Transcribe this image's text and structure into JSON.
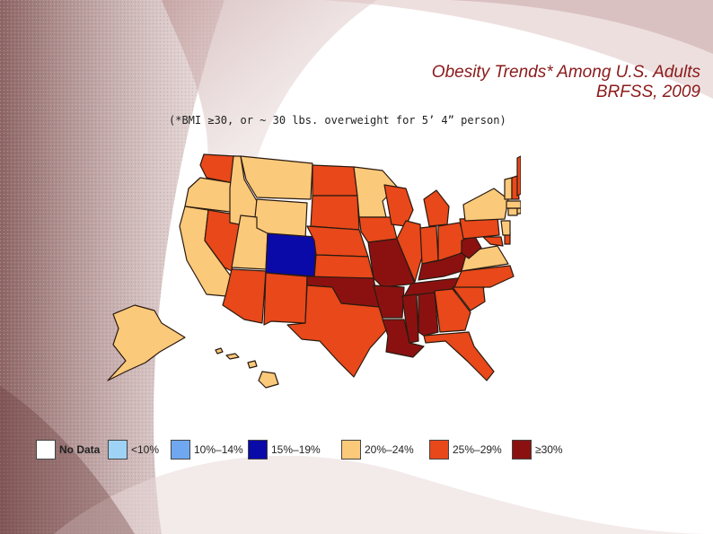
{
  "title": {
    "line1": "Obesity Trends* Among U.S. Adults",
    "line2": "BRFSS, 2009"
  },
  "subtitle": "(*BMI ≥30, or ~ 30 lbs. overweight for 5’ 4” person)",
  "colors": {
    "no_data": "#ffffff",
    "lt10": "#9fd3f5",
    "10_14": "#6fa8f0",
    "15_19": "#0a0aa8",
    "20_24": "#fbc97a",
    "25_29": "#e8481a",
    "gte30": "#8b1111",
    "state_border": "#2a1a10"
  },
  "legend": [
    {
      "key": "no_data",
      "label": "No Data",
      "color": "#ffffff"
    },
    {
      "key": "lt10",
      "label": "<10%",
      "color": "#9fd3f5"
    },
    {
      "key": "10_14",
      "label": "10%–14%",
      "color": "#6fa8f0"
    },
    {
      "key": "15_19",
      "label": "15%–19%",
      "color": "#0a0aa8"
    },
    {
      "key": "20_24",
      "label": "20%–24%",
      "color": "#fbc97a"
    },
    {
      "key": "25_29",
      "label": "25%–29%",
      "color": "#e8481a"
    },
    {
      "key": "gte30",
      "label": "≥30%",
      "color": "#8b1111"
    }
  ],
  "states": [
    {
      "name": "Washington",
      "category": "25_29"
    },
    {
      "name": "Oregon",
      "category": "20_24"
    },
    {
      "name": "California",
      "category": "20_24"
    },
    {
      "name": "Nevada",
      "category": "25_29"
    },
    {
      "name": "Idaho",
      "category": "20_24"
    },
    {
      "name": "Montana",
      "category": "20_24"
    },
    {
      "name": "Wyoming",
      "category": "20_24"
    },
    {
      "name": "Utah",
      "category": "20_24"
    },
    {
      "name": "Arizona",
      "category": "25_29"
    },
    {
      "name": "Colorado",
      "category": "15_19"
    },
    {
      "name": "New Mexico",
      "category": "25_29"
    },
    {
      "name": "North Dakota",
      "category": "25_29"
    },
    {
      "name": "South Dakota",
      "category": "25_29"
    },
    {
      "name": "Nebraska",
      "category": "25_29"
    },
    {
      "name": "Kansas",
      "category": "25_29"
    },
    {
      "name": "Oklahoma",
      "category": "gte30"
    },
    {
      "name": "Texas",
      "category": "25_29"
    },
    {
      "name": "Minnesota",
      "category": "20_24"
    },
    {
      "name": "Iowa",
      "category": "25_29"
    },
    {
      "name": "Missouri",
      "category": "gte30"
    },
    {
      "name": "Arkansas",
      "category": "gte30"
    },
    {
      "name": "Louisiana",
      "category": "gte30"
    },
    {
      "name": "Wisconsin",
      "category": "25_29"
    },
    {
      "name": "Illinois",
      "category": "25_29"
    },
    {
      "name": "Michigan",
      "category": "25_29"
    },
    {
      "name": "Indiana",
      "category": "25_29"
    },
    {
      "name": "Ohio",
      "category": "25_29"
    },
    {
      "name": "Kentucky",
      "category": "gte30"
    },
    {
      "name": "Tennessee",
      "category": "gte30"
    },
    {
      "name": "Mississippi",
      "category": "gte30"
    },
    {
      "name": "Alabama",
      "category": "gte30"
    },
    {
      "name": "Georgia",
      "category": "25_29"
    },
    {
      "name": "Florida",
      "category": "25_29"
    },
    {
      "name": "South Carolina",
      "category": "25_29"
    },
    {
      "name": "North Carolina",
      "category": "25_29"
    },
    {
      "name": "Virginia",
      "category": "20_24"
    },
    {
      "name": "West Virginia",
      "category": "gte30"
    },
    {
      "name": "Pennsylvania",
      "category": "25_29"
    },
    {
      "name": "New York",
      "category": "20_24"
    },
    {
      "name": "Maryland",
      "category": "25_29"
    },
    {
      "name": "Delaware",
      "category": "25_29"
    },
    {
      "name": "New Jersey",
      "category": "20_24"
    },
    {
      "name": "Connecticut",
      "category": "20_24"
    },
    {
      "name": "Rhode Island",
      "category": "20_24"
    },
    {
      "name": "Massachusetts",
      "category": "20_24"
    },
    {
      "name": "Vermont",
      "category": "20_24"
    },
    {
      "name": "New Hampshire",
      "category": "25_29"
    },
    {
      "name": "Maine",
      "category": "25_29"
    },
    {
      "name": "Alaska",
      "category": "20_24"
    },
    {
      "name": "Hawaii",
      "category": "20_24"
    }
  ]
}
